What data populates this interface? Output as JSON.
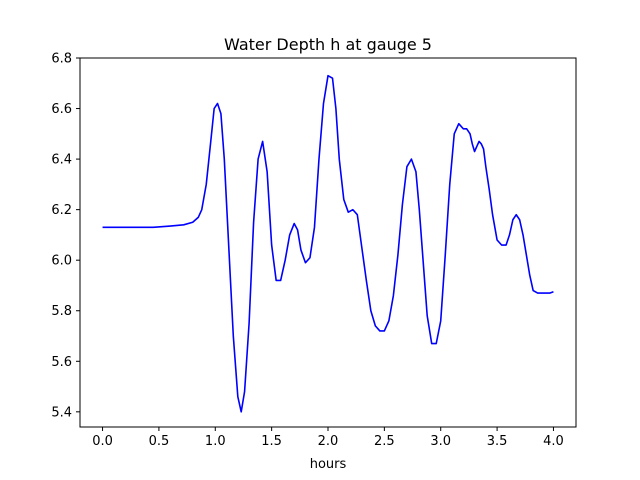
{
  "chart_data": {
    "type": "line",
    "title": "Water Depth h at gauge 5",
    "xlabel": "hours",
    "ylabel": "",
    "xlim": [
      -0.2,
      4.2
    ],
    "ylim": [
      5.34,
      6.8
    ],
    "xticks": [
      0.0,
      0.5,
      1.0,
      1.5,
      2.0,
      2.5,
      3.0,
      3.5,
      4.0
    ],
    "xtick_labels": [
      "0.0",
      "0.5",
      "1.0",
      "1.5",
      "2.0",
      "2.5",
      "3.0",
      "3.5",
      "4.0"
    ],
    "yticks": [
      5.4,
      5.6,
      5.8,
      6.0,
      6.2,
      6.4,
      6.6,
      6.8
    ],
    "ytick_labels": [
      "5.4",
      "5.6",
      "5.8",
      "6.0",
      "6.2",
      "6.4",
      "6.6",
      "6.8"
    ],
    "grid": false,
    "colors": {
      "line": "#0000ff",
      "axes": "#000000",
      "background": "#ffffff"
    },
    "series": [
      {
        "x": [
          0.0,
          0.2,
          0.45,
          0.6,
          0.72,
          0.8,
          0.85,
          0.88,
          0.92,
          0.96,
          0.99,
          1.02,
          1.05,
          1.08,
          1.12,
          1.16,
          1.2,
          1.23,
          1.26,
          1.3,
          1.34,
          1.38,
          1.42,
          1.46,
          1.5,
          1.54,
          1.58,
          1.62,
          1.66,
          1.7,
          1.73,
          1.76,
          1.8,
          1.84,
          1.88,
          1.92,
          1.96,
          2.0,
          2.04,
          2.07,
          2.1,
          2.14,
          2.18,
          2.22,
          2.26,
          2.3,
          2.34,
          2.38,
          2.42,
          2.46,
          2.5,
          2.54,
          2.58,
          2.62,
          2.66,
          2.7,
          2.74,
          2.78,
          2.81,
          2.84,
          2.88,
          2.92,
          2.96,
          3.0,
          3.04,
          3.08,
          3.12,
          3.16,
          3.2,
          3.23,
          3.26,
          3.28,
          3.3,
          3.32,
          3.34,
          3.36,
          3.38,
          3.4,
          3.43,
          3.46,
          3.5,
          3.54,
          3.58,
          3.61,
          3.64,
          3.67,
          3.7,
          3.73,
          3.76,
          3.79,
          3.82,
          3.86,
          3.9,
          3.94,
          3.97,
          4.0
        ],
        "y": [
          6.13,
          6.13,
          6.13,
          6.135,
          6.14,
          6.15,
          6.17,
          6.2,
          6.3,
          6.47,
          6.6,
          6.62,
          6.58,
          6.4,
          6.05,
          5.7,
          5.46,
          5.4,
          5.48,
          5.75,
          6.15,
          6.4,
          6.47,
          6.35,
          6.06,
          5.92,
          5.92,
          6.0,
          6.1,
          6.145,
          6.12,
          6.04,
          5.99,
          6.01,
          6.13,
          6.4,
          6.62,
          6.73,
          6.72,
          6.6,
          6.4,
          6.24,
          6.19,
          6.2,
          6.18,
          6.05,
          5.92,
          5.8,
          5.74,
          5.72,
          5.72,
          5.76,
          5.86,
          6.02,
          6.22,
          6.37,
          6.4,
          6.35,
          6.2,
          6.02,
          5.78,
          5.67,
          5.67,
          5.76,
          6.02,
          6.3,
          6.5,
          6.54,
          6.52,
          6.52,
          6.5,
          6.46,
          6.43,
          6.45,
          6.47,
          6.46,
          6.44,
          6.37,
          6.28,
          6.18,
          6.08,
          6.06,
          6.06,
          6.1,
          6.16,
          6.18,
          6.16,
          6.1,
          6.02,
          5.94,
          5.88,
          5.87,
          5.87,
          5.87,
          5.87,
          5.875
        ]
      }
    ]
  }
}
